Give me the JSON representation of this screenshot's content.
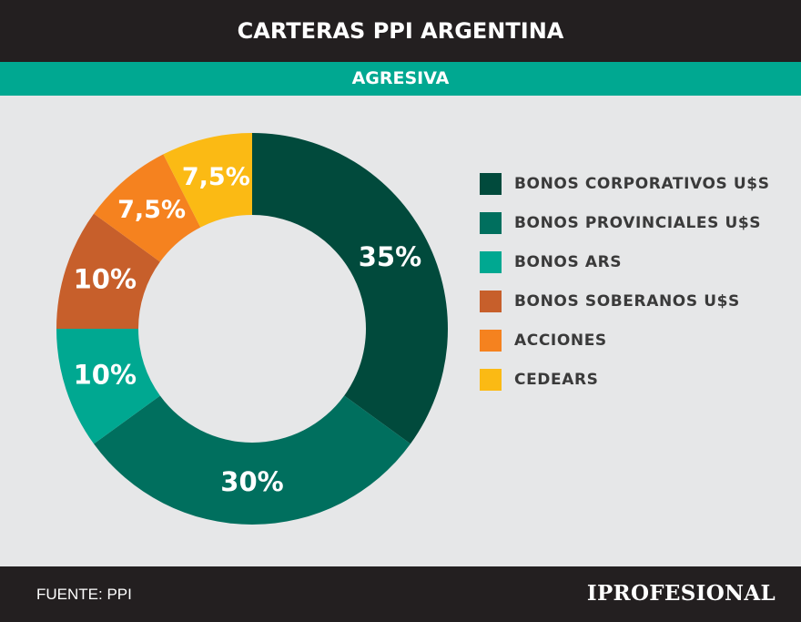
{
  "header": {
    "title": "CARTERAS PPI ARGENTINA",
    "subtitle": "AGRESIVA"
  },
  "chart_data": {
    "type": "pie",
    "donut": true,
    "categories": [
      "BONOS CORPORATIVOS U$S",
      "BONOS PROVINCIALES U$S",
      "BONOS ARS",
      "BONOS SOBERANOS U$S",
      "ACCIONES",
      "CEDEARS"
    ],
    "values": [
      35,
      30,
      10,
      10,
      7.5,
      7.5
    ],
    "data_labels": [
      "35%",
      "30%",
      "10%",
      "10%",
      "7,5%",
      "7,5%"
    ],
    "colors": [
      "#014a3c",
      "#006f5e",
      "#00a891",
      "#c75f2b",
      "#f5821f",
      "#fbba14"
    ],
    "legend_position": "right"
  },
  "footer": {
    "source": "FUENTE: PPI",
    "logo": "IPROFESIONAL"
  }
}
